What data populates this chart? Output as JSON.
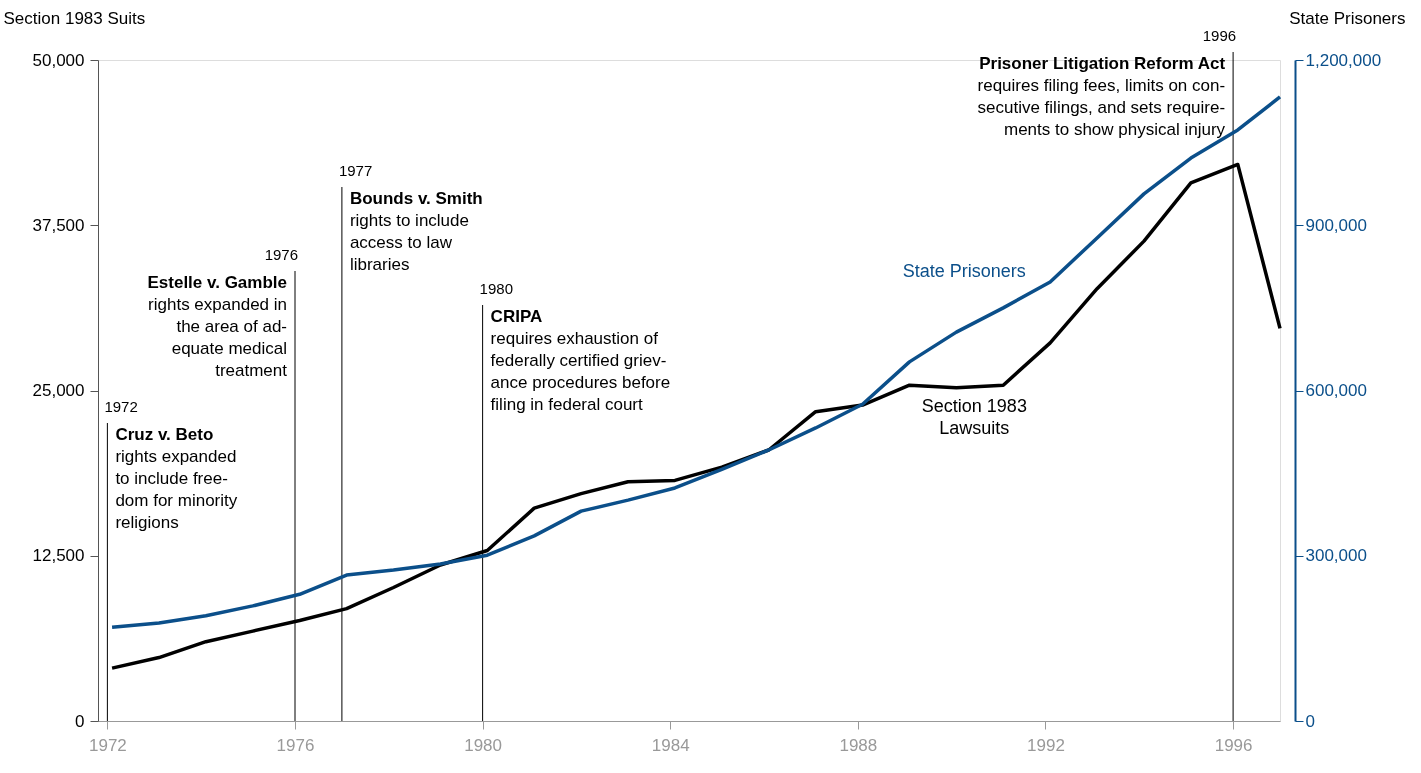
{
  "chart_data": {
    "type": "line",
    "ylabel": "Section 1983 Suits",
    "y2label": "State Prisoners",
    "x": [
      1972.1,
      1973.1,
      1974.1,
      1975.1,
      1976.1,
      1977.1,
      1978.1,
      1979.1,
      1980.1,
      1981.1,
      1982.1,
      1983.1,
      1984.1,
      1985.1,
      1986.1,
      1987.1,
      1988.1,
      1989.1,
      1990.1,
      1991.1,
      1992.1,
      1993.1,
      1994.1,
      1995.1,
      1996.1,
      1997.0
    ],
    "xlim": [
      1971.8,
      1997.0
    ],
    "xticks": [
      1972,
      1976,
      1980,
      1984,
      1988,
      1992,
      1996
    ],
    "ylim": [
      0,
      50000
    ],
    "yticks": [
      0,
      {
        "value": 12500,
        "label": "12,500"
      },
      {
        "value": 25000,
        "label": "25,000"
      },
      {
        "value": 37500,
        "label": "37,500"
      },
      {
        "value": 50000,
        "label": "50,000"
      }
    ],
    "y2lim": [
      0,
      1200000
    ],
    "y2ticks": [
      0,
      {
        "value": 300000,
        "label": "300,000"
      },
      {
        "value": 600000,
        "label": "600,000"
      },
      {
        "value": 900000,
        "label": "900,000"
      },
      {
        "value": 1200000,
        "label": "1,200,000"
      }
    ],
    "series": [
      {
        "name": "Section 1983 Lawsuits",
        "color": "#000000",
        "values": [
          4000,
          4800,
          6000,
          6800,
          7600,
          8500,
          10100,
          11800,
          12900,
          16100,
          17200,
          18100,
          18200,
          19200,
          20500,
          23400,
          23900,
          25400,
          25200,
          25400,
          28600,
          32700,
          36300,
          40700,
          42100,
          29700
        ]
      },
      {
        "name": "State Prisoners",
        "color": "#0b4f8a",
        "axis": "y2",
        "values": [
          170000,
          178000,
          191000,
          209000,
          230000,
          265000,
          274000,
          285000,
          301000,
          336000,
          381000,
          401000,
          423000,
          457000,
          492000,
          532000,
          575000,
          652000,
          706000,
          750000,
          797000,
          877000,
          957000,
          1022000,
          1073000,
          1133000
        ]
      }
    ],
    "ref_lines": [
      {
        "axis": "x",
        "value": 1972,
        "label": "1972"
      },
      {
        "axis": "x",
        "value": 1976,
        "label": "1976"
      },
      {
        "axis": "x",
        "value": 1977,
        "label": "1977"
      },
      {
        "axis": "x",
        "value": 1980,
        "label": "1980"
      },
      {
        "axis": "x",
        "value": 1996,
        "label": "1996"
      }
    ],
    "annotations": [
      "Cruz v. Beto\nrights expanded\nto include free-\ndom for minority\nreligions",
      "Estelle v. Gamble\nrights expanded in\nthe area of ad-\nequate medical\ntreatment",
      "Bounds v. Smith\nrights to include\naccess to law\nlibraries",
      "CRIPA\nrequires exhaustion of\nfederally certified griev-\nance procedures before\nfiling in federal court",
      "Prisoner Litigation Reform Act\nrequires filing fees, limits on con-\nsecutive filings, and sets require-\nments to show physical injury"
    ]
  }
}
